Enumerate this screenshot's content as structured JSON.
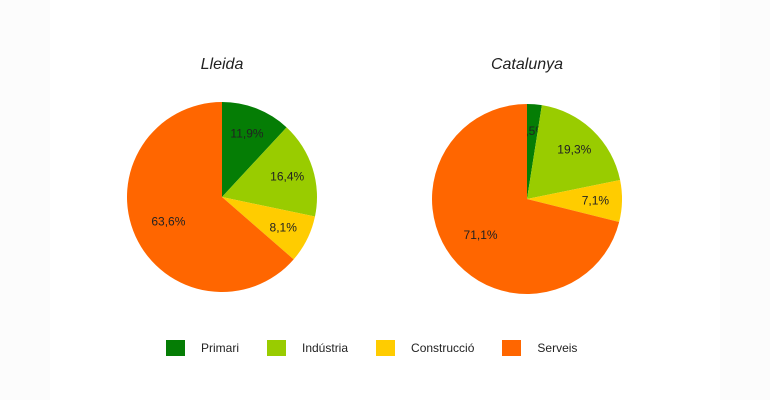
{
  "chart_data": [
    {
      "type": "pie",
      "title": "Lleida",
      "categories": [
        "Primari",
        "Indústria",
        "Construcció",
        "Serveis"
      ],
      "values": [
        11.9,
        16.4,
        8.1,
        63.6
      ],
      "labels": [
        "11,9%",
        "16,4%",
        "8,1%",
        "63,6%"
      ],
      "colors": [
        "#057d05",
        "#99cc00",
        "#ffcc00",
        "#ff6600"
      ],
      "start_angle": "12 o'clock, clockwise"
    },
    {
      "type": "pie",
      "title": "Catalunya",
      "categories": [
        "Primari",
        "Indústria",
        "Construcció",
        "Serveis"
      ],
      "values": [
        2.5,
        19.3,
        7.1,
        71.1
      ],
      "labels": [
        "2,5%",
        "19,3%",
        "7,1%",
        "71,1%"
      ],
      "colors": [
        "#057d05",
        "#99cc00",
        "#ffcc00",
        "#ff6600"
      ],
      "start_angle": "12 o'clock, clockwise"
    }
  ],
  "legend": {
    "position": "bottom",
    "items": [
      {
        "label": "Primari",
        "color": "#057d05"
      },
      {
        "label": "Indústria",
        "color": "#99cc00"
      },
      {
        "label": "Construcció",
        "color": "#ffcc00"
      },
      {
        "label": "Serveis",
        "color": "#ff6600"
      }
    ]
  }
}
